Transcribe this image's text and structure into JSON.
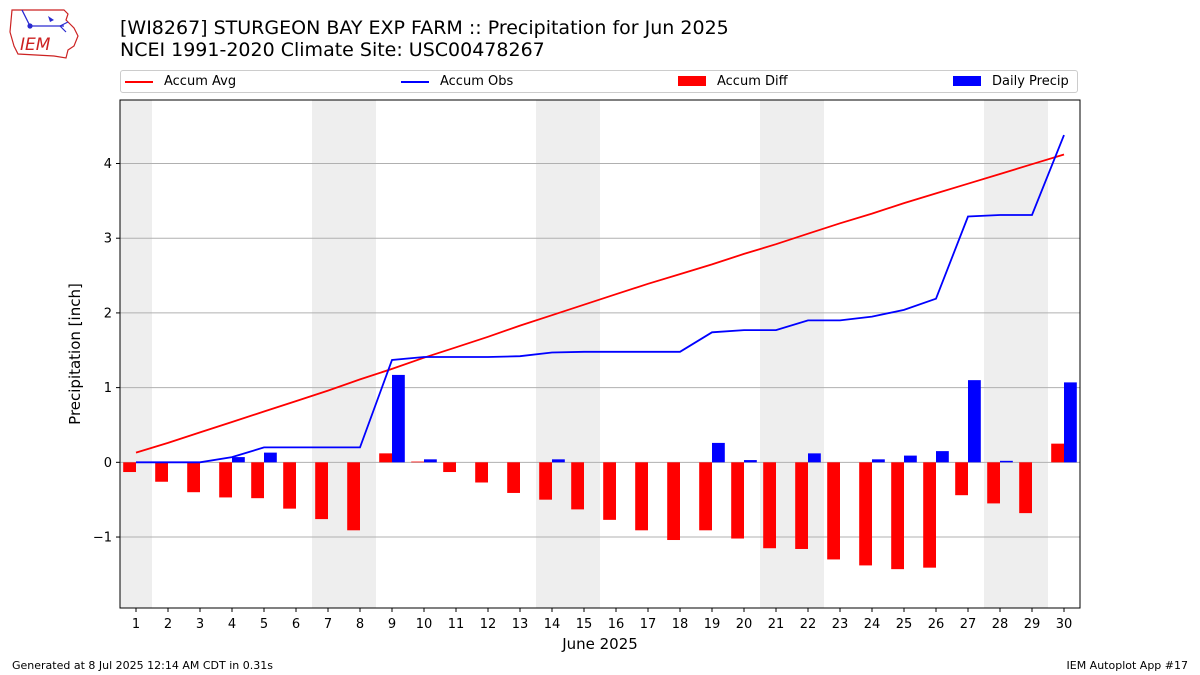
{
  "logo": {
    "text": "IEM"
  },
  "header": {
    "title": "[WI8267] STURGEON BAY EXP FARM :: Precipitation for Jun 2025",
    "subtitle": "NCEI 1991-2020 Climate Site: USC00478267"
  },
  "footer": {
    "generated": "Generated at 8 Jul 2025 12:14 AM CDT in 0.31s",
    "app": "IEM Autoplot App #17"
  },
  "colors": {
    "accum_avg": "#ff0000",
    "accum_obs": "#0000ff",
    "accum_diff": "#ff0000",
    "daily_precip": "#0000ff",
    "weekend_shade": "#eeeeee",
    "grid": "#b0b0b0"
  },
  "chart_data": {
    "type": "bar",
    "title": "[WI8267] STURGEON BAY EXP FARM :: Precipitation for Jun 2025",
    "subtitle": "NCEI 1991-2020 Climate Site: USC00478267",
    "xlabel": "June 2025",
    "ylabel": "Precipitation [inch]",
    "ylim": [
      -1.95,
      4.85
    ],
    "yticks": [
      -1,
      0,
      1,
      2,
      3,
      4
    ],
    "ytick_labels": [
      "−1",
      "0",
      "1",
      "2",
      "3",
      "4"
    ],
    "categories": [
      "1",
      "2",
      "3",
      "4",
      "5",
      "6",
      "7",
      "8",
      "9",
      "10",
      "11",
      "12",
      "13",
      "14",
      "15",
      "16",
      "17",
      "18",
      "19",
      "20",
      "21",
      "22",
      "23",
      "24",
      "25",
      "26",
      "27",
      "28",
      "29",
      "30"
    ],
    "weekend_days": [
      1,
      7,
      8,
      14,
      15,
      21,
      22,
      28,
      29
    ],
    "grid": "y",
    "legend_position": "top",
    "series": [
      {
        "name": "Accum Avg",
        "kind": "line",
        "values": [
          0.13,
          0.26,
          0.4,
          0.54,
          0.68,
          0.82,
          0.96,
          1.11,
          1.25,
          1.4,
          1.54,
          1.68,
          1.83,
          1.97,
          2.11,
          2.25,
          2.39,
          2.52,
          2.65,
          2.79,
          2.92,
          3.06,
          3.2,
          3.33,
          3.47,
          3.6,
          3.73,
          3.86,
          3.99,
          4.12
        ]
      },
      {
        "name": "Accum Obs",
        "kind": "line",
        "values": [
          0.0,
          0.0,
          0.0,
          0.07,
          0.2,
          0.2,
          0.2,
          0.2,
          1.37,
          1.41,
          1.41,
          1.41,
          1.42,
          1.47,
          1.48,
          1.48,
          1.48,
          1.48,
          1.74,
          1.77,
          1.77,
          1.9,
          1.9,
          1.95,
          2.04,
          2.19,
          3.29,
          3.31,
          3.31,
          4.38
        ]
      },
      {
        "name": "Accum Diff",
        "kind": "bar",
        "values": [
          -0.13,
          -0.26,
          -0.4,
          -0.47,
          -0.48,
          -0.62,
          -0.76,
          -0.91,
          0.12,
          0.01,
          -0.13,
          -0.27,
          -0.41,
          -0.5,
          -0.63,
          -0.77,
          -0.91,
          -1.04,
          -0.91,
          -1.02,
          -1.15,
          -1.16,
          -1.3,
          -1.38,
          -1.43,
          -1.41,
          -0.44,
          -0.55,
          -0.68,
          0.25
        ]
      },
      {
        "name": "Daily Precip",
        "kind": "bar",
        "values": [
          0,
          0,
          0,
          0.07,
          0.13,
          0,
          0,
          0,
          1.17,
          0.04,
          0,
          0,
          0,
          0.04,
          0,
          0,
          0,
          0,
          0.26,
          0.03,
          0,
          0.12,
          0,
          0.04,
          0.09,
          0.15,
          1.1,
          0.02,
          0,
          1.07
        ]
      }
    ]
  }
}
